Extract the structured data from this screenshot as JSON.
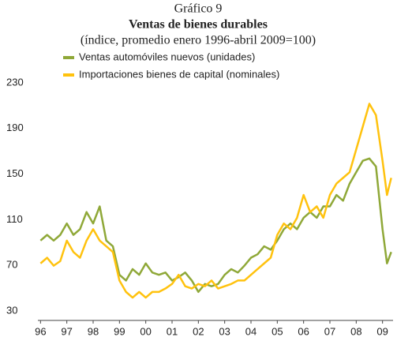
{
  "chart_data": {
    "type": "line",
    "subtitle_top": "Gráfico 9",
    "title": "Ventas de bienes durables",
    "subtitle": "(índice, promedio enero 1996-abril 2009=100)",
    "x": [
      1996,
      1996.25,
      1996.5,
      1996.75,
      1997,
      1997.25,
      1997.5,
      1997.75,
      1998,
      1998.25,
      1998.5,
      1998.75,
      1999,
      1999.25,
      1999.5,
      1999.75,
      2000,
      2000.25,
      2000.5,
      2000.75,
      2001,
      2001.25,
      2001.5,
      2001.75,
      2002,
      2002.25,
      2002.5,
      2002.75,
      2003,
      2003.25,
      2003.5,
      2003.75,
      2004,
      2004.25,
      2004.5,
      2004.75,
      2005,
      2005.25,
      2005.5,
      2005.75,
      2006,
      2006.25,
      2006.5,
      2006.75,
      2007,
      2007.25,
      2007.5,
      2007.75,
      2008,
      2008.25,
      2008.5,
      2008.75,
      2009,
      2009.17,
      2009.33
    ],
    "series": [
      {
        "name": "Ventas automóviles nuevos (unidades)",
        "color": "#8fa838",
        "values": [
          100,
          105,
          100,
          105,
          115,
          105,
          110,
          125,
          115,
          130,
          100,
          95,
          70,
          65,
          75,
          70,
          80,
          72,
          70,
          72,
          65,
          68,
          72,
          65,
          55,
          62,
          60,
          62,
          70,
          75,
          72,
          78,
          85,
          88,
          95,
          92,
          100,
          110,
          115,
          110,
          120,
          125,
          120,
          130,
          130,
          140,
          135,
          150,
          160,
          170,
          172,
          165,
          110,
          80,
          90
        ]
      },
      {
        "name": "Importaciones bienes de capital (nominales)",
        "color": "#ffc20e",
        "values": [
          80,
          85,
          78,
          82,
          100,
          90,
          85,
          100,
          110,
          100,
          95,
          90,
          65,
          55,
          50,
          55,
          50,
          55,
          55,
          58,
          62,
          70,
          60,
          58,
          62,
          60,
          65,
          58,
          60,
          62,
          65,
          65,
          70,
          75,
          80,
          85,
          105,
          115,
          110,
          120,
          140,
          125,
          130,
          120,
          140,
          150,
          155,
          160,
          180,
          200,
          220,
          210,
          170,
          140,
          155
        ]
      }
    ],
    "xlim": [
      1995.9,
      2009.4
    ],
    "xticks": [
      {
        "value": 1996,
        "label": "96"
      },
      {
        "value": 1997,
        "label": "97"
      },
      {
        "value": 1998,
        "label": "98"
      },
      {
        "value": 1999,
        "label": "99"
      },
      {
        "value": 2000,
        "label": "00"
      },
      {
        "value": 2001,
        "label": "01"
      },
      {
        "value": 2002,
        "label": "02"
      },
      {
        "value": 2003,
        "label": "03"
      },
      {
        "value": 2004,
        "label": "04"
      },
      {
        "value": 2005,
        "label": "05"
      },
      {
        "value": 2006,
        "label": "06"
      },
      {
        "value": 2007,
        "label": "07"
      },
      {
        "value": 2008,
        "label": "08"
      },
      {
        "value": 2009,
        "label": "09"
      }
    ],
    "ylim": [
      30,
      230
    ],
    "yticks": [
      30,
      70,
      110,
      150,
      190,
      230
    ]
  }
}
